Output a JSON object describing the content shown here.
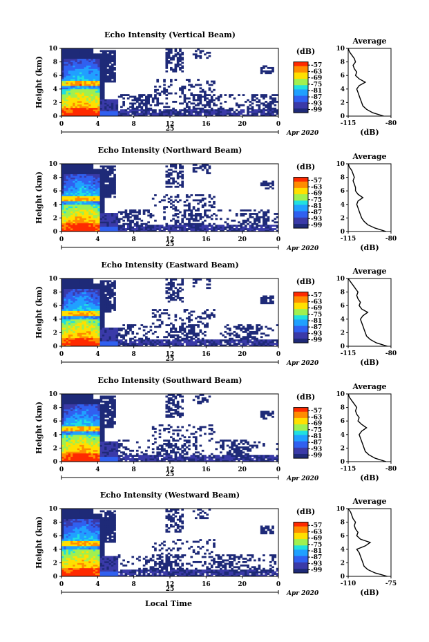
{
  "chart_data": [
    {
      "type": "heatmap",
      "title": "Echo Intensity (Vertical Beam)",
      "ylabel": "Height (km)",
      "y_ticks": [
        "0",
        "2",
        "4",
        "6",
        "8",
        "10"
      ],
      "x_ticks": [
        "0",
        "4",
        "8",
        "12",
        "16",
        "20",
        "0"
      ],
      "date_label": "25",
      "month_label": "Apr 2020",
      "colorbar_unit": "(dB)",
      "colorbar_ticks": [
        "-57",
        "-63",
        "-69",
        "-75",
        "-81",
        "-87",
        "-93",
        "-99"
      ],
      "average": {
        "title": "Average",
        "x_ticks": [
          "-115",
          "-80"
        ],
        "xlim": [
          -115,
          -80
        ],
        "y_ticks": [
          "0",
          "2",
          "4",
          "6",
          "8",
          "10"
        ],
        "xlabel": "(dB)",
        "heights": [
          0,
          0.5,
          1,
          1.5,
          2,
          2.5,
          3,
          3.5,
          4,
          4.5,
          5,
          5.5,
          6,
          6.5,
          7,
          7.5,
          8,
          8.5,
          9,
          9.5,
          10
        ],
        "values": [
          -86,
          -95,
          -100,
          -103,
          -104,
          -105,
          -106,
          -107,
          -108,
          -106,
          -101,
          -106,
          -109,
          -108,
          -110,
          -111,
          -109,
          -110,
          -112,
          -114,
          -115
        ]
      }
    },
    {
      "type": "heatmap",
      "title": "Echo Intensity (Northward Beam)",
      "ylabel": "Height (km)",
      "y_ticks": [
        "0",
        "2",
        "4",
        "6",
        "8",
        "10"
      ],
      "x_ticks": [
        "0",
        "4",
        "8",
        "12",
        "16",
        "20",
        "0"
      ],
      "date_label": "25",
      "month_label": "Apr 2020",
      "colorbar_unit": "(dB)",
      "colorbar_ticks": [
        "-57",
        "-63",
        "-69",
        "-75",
        "-81",
        "-87",
        "-93",
        "-99"
      ],
      "average": {
        "title": "Average",
        "x_ticks": [
          "-115",
          "-80"
        ],
        "xlim": [
          -115,
          -80
        ],
        "y_ticks": [
          "0",
          "2",
          "4",
          "6",
          "8",
          "10"
        ],
        "xlabel": "(dB)",
        "heights": [
          0,
          0.5,
          1,
          1.5,
          2,
          2.5,
          3,
          3.5,
          4,
          4.5,
          5,
          5.5,
          6,
          6.5,
          7,
          7.5,
          8,
          8.5,
          9,
          9.5,
          10
        ],
        "values": [
          -84,
          -93,
          -99,
          -102,
          -104,
          -105,
          -106,
          -107,
          -108,
          -107,
          -103,
          -107,
          -109,
          -109,
          -110,
          -111,
          -110,
          -111,
          -112,
          -114,
          -115
        ]
      }
    },
    {
      "type": "heatmap",
      "title": "Echo Intensity (Eastward Beam)",
      "ylabel": "Height (km)",
      "y_ticks": [
        "0",
        "2",
        "4",
        "6",
        "8",
        "10"
      ],
      "x_ticks": [
        "0",
        "4",
        "8",
        "12",
        "16",
        "20",
        "0"
      ],
      "date_label": "25",
      "month_label": "Apr 2020",
      "colorbar_unit": "(dB)",
      "colorbar_ticks": [
        "-57",
        "-63",
        "-69",
        "-75",
        "-81",
        "-87",
        "-93",
        "-99"
      ],
      "average": {
        "title": "Average",
        "x_ticks": [
          "-115",
          "-80"
        ],
        "xlim": [
          -115,
          -80
        ],
        "y_ticks": [
          "0",
          "2",
          "4",
          "6",
          "8",
          "10"
        ],
        "xlabel": "(dB)",
        "heights": [
          0,
          0.5,
          1,
          1.5,
          2,
          2.5,
          3,
          3.5,
          4,
          4.5,
          5,
          5.5,
          6,
          6.5,
          7,
          7.5,
          8,
          8.5,
          9,
          9.5,
          10
        ],
        "values": [
          -83,
          -92,
          -97,
          -100,
          -101,
          -102,
          -103,
          -104,
          -105,
          -103,
          -99,
          -104,
          -106,
          -105,
          -107,
          -108,
          -107,
          -109,
          -111,
          -113,
          -115
        ]
      }
    },
    {
      "type": "heatmap",
      "title": "Echo Intensity (Southward Beam)",
      "ylabel": "Height (km)",
      "y_ticks": [
        "0",
        "2",
        "4",
        "6",
        "8",
        "10"
      ],
      "x_ticks": [
        "0",
        "4",
        "8",
        "12",
        "16",
        "20",
        "0"
      ],
      "date_label": "25",
      "month_label": "Apr 2020",
      "colorbar_unit": "(dB)",
      "colorbar_ticks": [
        "-57",
        "-63",
        "-69",
        "-75",
        "-81",
        "-87",
        "-93",
        "-99"
      ],
      "average": {
        "title": "Average",
        "x_ticks": [
          "-115",
          "-80"
        ],
        "xlim": [
          -115,
          -80
        ],
        "y_ticks": [
          "0",
          "2",
          "4",
          "6",
          "8",
          "10"
        ],
        "xlabel": "(dB)",
        "heights": [
          0,
          0.5,
          1,
          1.5,
          2,
          2.5,
          3,
          3.5,
          4,
          4.5,
          5,
          5.5,
          6,
          6.5,
          7,
          7.5,
          8,
          8.5,
          9,
          9.5,
          10
        ],
        "values": [
          -84,
          -93,
          -98,
          -101,
          -102,
          -103,
          -104,
          -105,
          -106,
          -104,
          -100,
          -104,
          -107,
          -106,
          -108,
          -109,
          -108,
          -110,
          -112,
          -114,
          -115
        ]
      }
    },
    {
      "type": "heatmap",
      "title": "Echo Intensity (Westward Beam)",
      "ylabel": "Height (km)",
      "y_ticks": [
        "0",
        "2",
        "4",
        "6",
        "8",
        "10"
      ],
      "x_ticks": [
        "0",
        "4",
        "8",
        "12",
        "16",
        "20",
        "0"
      ],
      "date_label": "25",
      "month_label": "Apr 2020",
      "colorbar_unit": "(dB)",
      "colorbar_ticks": [
        "-57",
        "-63",
        "-69",
        "-75",
        "-81",
        "-87",
        "-93",
        "-99"
      ],
      "xlabel": "Local Time",
      "average": {
        "title": "Average",
        "x_ticks": [
          "-110",
          "-75"
        ],
        "xlim": [
          -110,
          -75
        ],
        "y_ticks": [
          "0",
          "2",
          "4",
          "6",
          "8",
          "10"
        ],
        "xlabel": "(dB)",
        "heights": [
          0,
          0.5,
          1,
          1.5,
          2,
          2.5,
          3,
          3.5,
          4,
          4.5,
          5,
          5.5,
          6,
          6.5,
          7,
          7.5,
          8,
          8.5,
          9,
          9.5,
          10
        ],
        "values": [
          -78,
          -88,
          -94,
          -97,
          -98,
          -99,
          -100,
          -101,
          -103,
          -96,
          -92,
          -100,
          -103,
          -102,
          -104,
          -105,
          -104,
          -106,
          -107,
          -108,
          -110
        ]
      }
    }
  ],
  "colors": {
    "scale": [
      "#ff2a00",
      "#ff8c00",
      "#ffe000",
      "#a0f050",
      "#20e0e0",
      "#20a0ff",
      "#3060f0",
      "#3a3aa8",
      "#1e2a78"
    ],
    "no_data": "#ffffff",
    "axis": "#000000"
  }
}
